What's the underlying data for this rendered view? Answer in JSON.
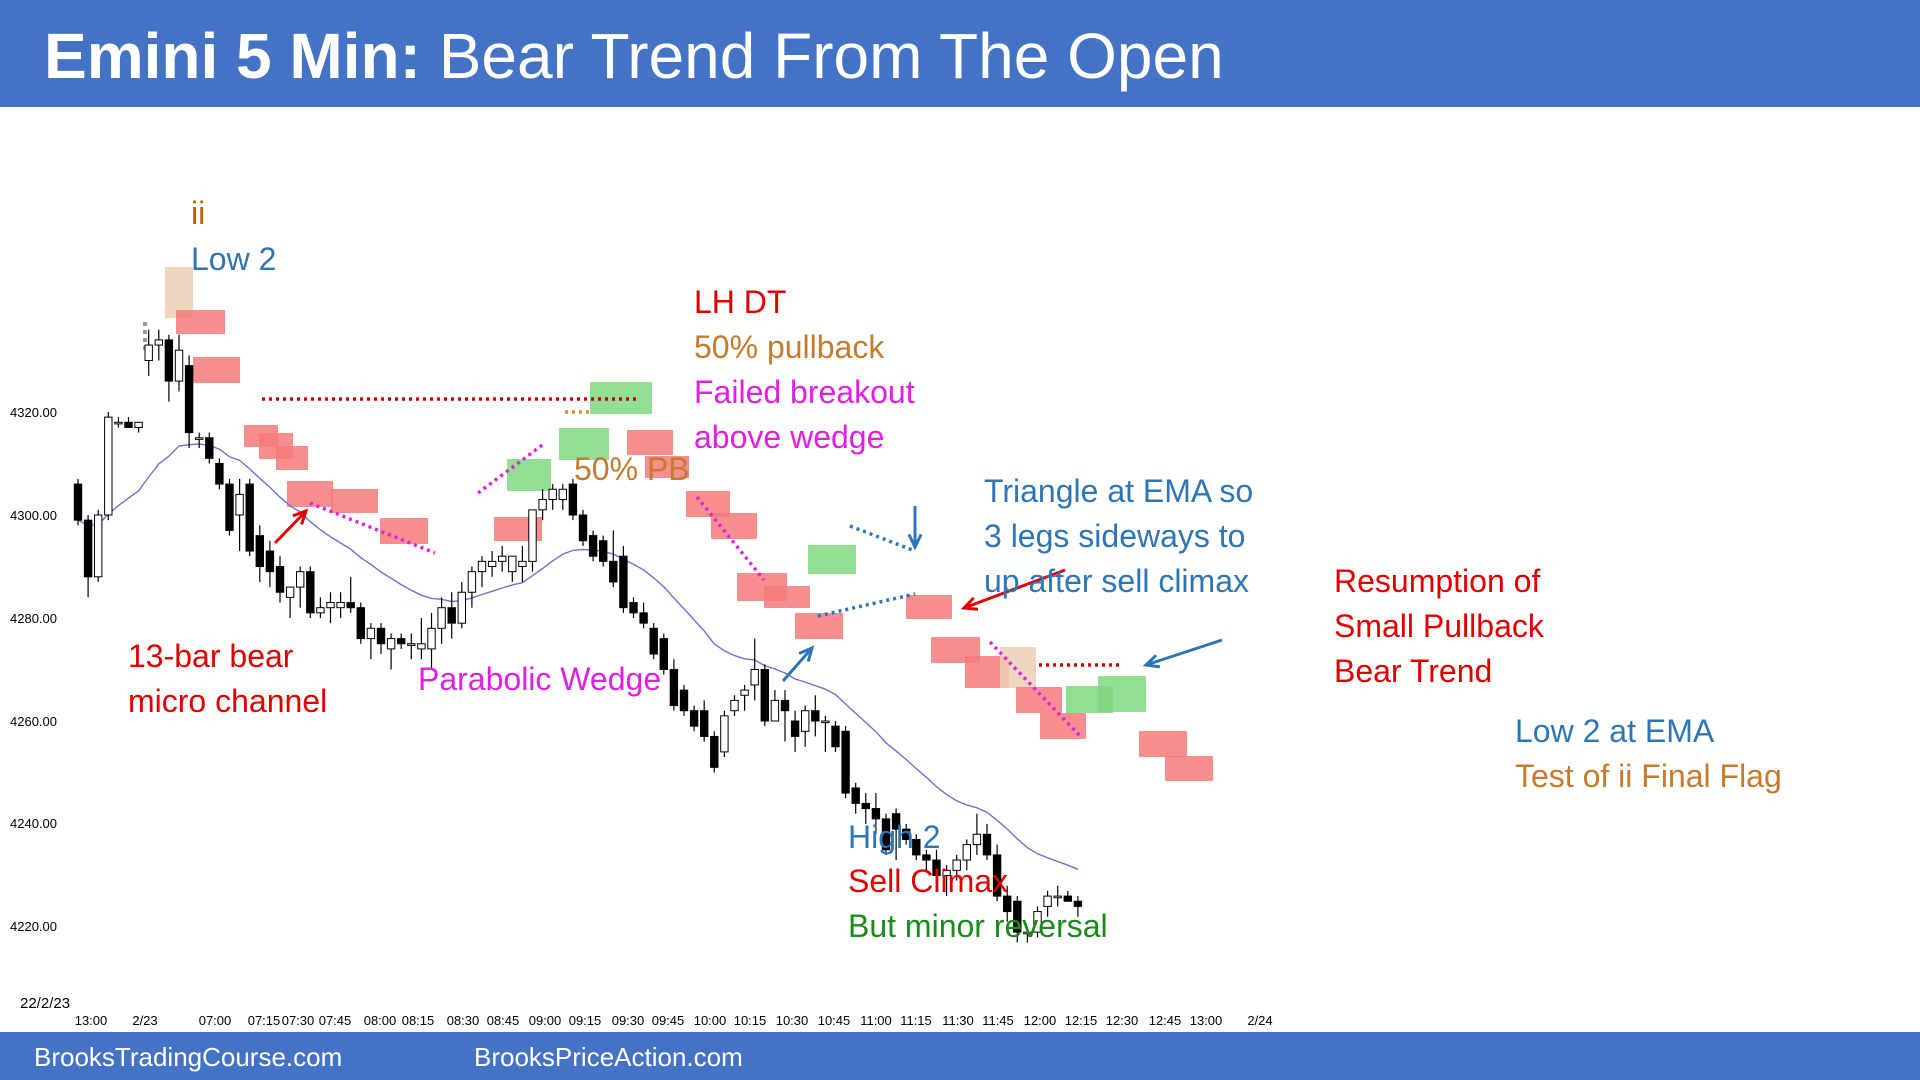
{
  "header": {
    "title_bold": "Emini 5 Min:",
    "title_rest": " Bear Trend From The Open",
    "bg": "#4472c4"
  },
  "footer": {
    "left": "BrooksTradingCourse.com",
    "right": "BrooksPriceAction.com"
  },
  "chart_data": {
    "type": "candlestick",
    "date_label": "22/2/23",
    "y_ticks": [
      "4320.00",
      "4300.00",
      "4280.00",
      "4260.00",
      "4240.00",
      "4220.00"
    ],
    "x_ticks": [
      "13:00",
      "2/23",
      "07:00",
      "07:15",
      "07:30",
      "07:45",
      "08:00",
      "08:15",
      "08:30",
      "08:45",
      "09:00",
      "09:15",
      "09:30",
      "09:45",
      "10:00",
      "10:15",
      "10:30",
      "10:45",
      "11:00",
      "11:15",
      "11:30",
      "11:45",
      "12:00",
      "12:15",
      "12:30",
      "12:45",
      "13:00",
      "2/24"
    ],
    "ylim": [
      4213,
      4342
    ],
    "ema_color": "#7070cc",
    "colors": {
      "bear_highlight": "#f47a7a",
      "bull_highlight": "#7fd87f",
      "ii_highlight": "#eccfb4"
    },
    "candles": [
      [
        4306,
        4307,
        4298,
        4299
      ],
      [
        4299,
        4300,
        4284,
        4288
      ],
      [
        4288,
        4301,
        4287,
        4300
      ],
      [
        4300,
        4320,
        4299,
        4319
      ],
      [
        4318,
        4319,
        4317,
        4318
      ],
      [
        4318,
        4319,
        4317,
        4317
      ],
      [
        4317,
        4318,
        4316,
        4318
      ],
      [
        4330,
        4336,
        4327,
        4333
      ],
      [
        4333,
        4336,
        4330,
        4334
      ],
      [
        4334,
        4335,
        4322,
        4326
      ],
      [
        4326,
        4335,
        4324,
        4332
      ],
      [
        4329,
        4331,
        4313,
        4316
      ],
      [
        4315,
        4316,
        4313,
        4315
      ],
      [
        4315,
        4316,
        4310,
        4311
      ],
      [
        4310,
        4311,
        4305,
        4306
      ],
      [
        4306,
        4307,
        4296,
        4297
      ],
      [
        4300,
        4307,
        4293,
        4304
      ],
      [
        4306,
        4307,
        4292,
        4293
      ],
      [
        4296,
        4298,
        4287,
        4290
      ],
      [
        4293,
        4295,
        4286,
        4289
      ],
      [
        4290,
        4292,
        4283,
        4285
      ],
      [
        4284,
        4286,
        4280,
        4286
      ],
      [
        4286,
        4290,
        4282,
        4289
      ],
      [
        4289,
        4290,
        4280,
        4281
      ],
      [
        4281,
        4284,
        4280,
        4282
      ],
      [
        4282,
        4285,
        4279,
        4283
      ],
      [
        4282,
        4285,
        4280,
        4283
      ],
      [
        4283,
        4288,
        4281,
        4282
      ],
      [
        4282,
        4283,
        4275,
        4276
      ],
      [
        4276,
        4279,
        4272,
        4278
      ],
      [
        4278,
        4279,
        4273,
        4275
      ],
      [
        4274,
        4277,
        4270,
        4276
      ],
      [
        4276,
        4277,
        4274,
        4275
      ],
      [
        4275,
        4277,
        4272,
        4275
      ],
      [
        4274,
        4280,
        4272,
        4275
      ],
      [
        4274,
        4281,
        4270,
        4278
      ],
      [
        4278,
        4284,
        4275,
        4282
      ],
      [
        4282,
        4285,
        4276,
        4279
      ],
      [
        4279,
        4287,
        4278,
        4285
      ],
      [
        4285,
        4290,
        4282,
        4289
      ],
      [
        4289,
        4292,
        4286,
        4291
      ],
      [
        4290,
        4293,
        4288,
        4291
      ],
      [
        4291,
        4294,
        4289,
        4292
      ],
      [
        4289,
        4292,
        4287,
        4292
      ],
      [
        4290,
        4294,
        4287,
        4291
      ],
      [
        4291,
        4301,
        4289,
        4301
      ],
      [
        4301,
        4305,
        4299,
        4303
      ],
      [
        4303,
        4306,
        4301,
        4305
      ],
      [
        4303,
        4306,
        4301,
        4305
      ],
      [
        4306,
        4307,
        4299,
        4300
      ],
      [
        4300,
        4301,
        4294,
        4295
      ],
      [
        4296,
        4297,
        4291,
        4292
      ],
      [
        4295,
        4296,
        4290,
        4291
      ],
      [
        4291,
        4297,
        4286,
        4287
      ],
      [
        4292,
        4294,
        4281,
        4282
      ],
      [
        4283,
        4284,
        4280,
        4281
      ],
      [
        4281,
        4283,
        4278,
        4279
      ],
      [
        4278,
        4279,
        4272,
        4273
      ],
      [
        4276,
        4277,
        4269,
        4270
      ],
      [
        4270,
        4272,
        4262,
        4263
      ],
      [
        4266,
        4267,
        4261,
        4262
      ],
      [
        4262,
        4263,
        4258,
        4259
      ],
      [
        4262,
        4264,
        4256,
        4257
      ],
      [
        4257,
        4258,
        4250,
        4251
      ],
      [
        4254,
        4262,
        4253,
        4261
      ],
      [
        4262,
        4265,
        4261,
        4264
      ],
      [
        4265,
        4267,
        4262,
        4266
      ],
      [
        4267,
        4276,
        4264,
        4270
      ],
      [
        4270,
        4271,
        4259,
        4260
      ],
      [
        4260,
        4266,
        4260,
        4264
      ],
      [
        4264,
        4266,
        4256,
        4262
      ],
      [
        4260,
        4262,
        4254,
        4257
      ],
      [
        4258,
        4263,
        4255,
        4262
      ],
      [
        4262,
        4265,
        4257,
        4260
      ],
      [
        4260,
        4261,
        4254,
        4260
      ],
      [
        4259,
        4260,
        4254,
        4255
      ],
      [
        4258,
        4259,
        4245,
        4246
      ],
      [
        4247,
        4248,
        4242,
        4244
      ],
      [
        4244,
        4246,
        4240,
        4243
      ],
      [
        4243,
        4246,
        4238,
        4241
      ],
      [
        4241,
        4242,
        4234,
        4235
      ],
      [
        4242,
        4243,
        4233,
        4239
      ],
      [
        4239,
        4240,
        4236,
        4237
      ],
      [
        4237,
        4238,
        4233,
        4234
      ],
      [
        4234,
        4235,
        4231,
        4233
      ],
      [
        4233,
        4235,
        4228,
        4230
      ],
      [
        4230,
        4232,
        4226,
        4231
      ],
      [
        4231,
        4234,
        4229,
        4233
      ],
      [
        4233,
        4237,
        4231,
        4236
      ],
      [
        4236,
        4242,
        4234,
        4238
      ],
      [
        4238,
        4240,
        4233,
        4234
      ],
      [
        4234,
        4236,
        4225,
        4226
      ],
      [
        4226,
        4228,
        4221,
        4223
      ],
      [
        4225,
        4226,
        4217,
        4219
      ],
      [
        4219,
        4220,
        4217,
        4219
      ],
      [
        4219,
        4224,
        4218,
        4223
      ],
      [
        4224,
        4227,
        4222,
        4226
      ],
      [
        4226,
        4228,
        4224,
        4226
      ],
      [
        4226,
        4227,
        4225,
        4225
      ],
      [
        4225,
        4226,
        4222,
        4224
      ]
    ],
    "annotations": [
      {
        "lines": [
          "ii"
        ],
        "color": "#c55a11"
      },
      {
        "lines": [
          "Low 2"
        ],
        "color": "#2e75b6"
      },
      {
        "lines": [
          "LH DT"
        ],
        "color": "#e00000"
      },
      {
        "lines": [
          "50% pullback"
        ],
        "color": "#c57a2e"
      },
      {
        "lines": [
          "Failed breakout",
          "above wedge"
        ],
        "color": "#e020e0"
      },
      {
        "lines": [
          "50% PB"
        ],
        "color": "#c57a2e"
      },
      {
        "lines": [
          "Triangle at EMA so",
          "3 legs sideways to",
          "up after sell climax"
        ],
        "color": "#2e75b6"
      },
      {
        "lines": [
          "Resumption of",
          "Small Pullback",
          "Bear Trend"
        ],
        "color": "#e00000"
      },
      {
        "lines": [
          "13-bar bear",
          "micro channel"
        ],
        "color": "#e00000"
      },
      {
        "lines": [
          "Parabolic Wedge"
        ],
        "color": "#e020e0"
      },
      {
        "lines": [
          "Low 2 at EMA"
        ],
        "color": "#2e75b6"
      },
      {
        "lines": [
          "Test of ii Final Flag"
        ],
        "color": "#c57a2e"
      },
      {
        "lines": [
          "High 2"
        ],
        "color": "#2e75b6"
      },
      {
        "lines": [
          "Sell Climax"
        ],
        "color": "#e00000"
      },
      {
        "lines": [
          "But minor reversal"
        ],
        "color": "#1a8a1a"
      }
    ]
  }
}
